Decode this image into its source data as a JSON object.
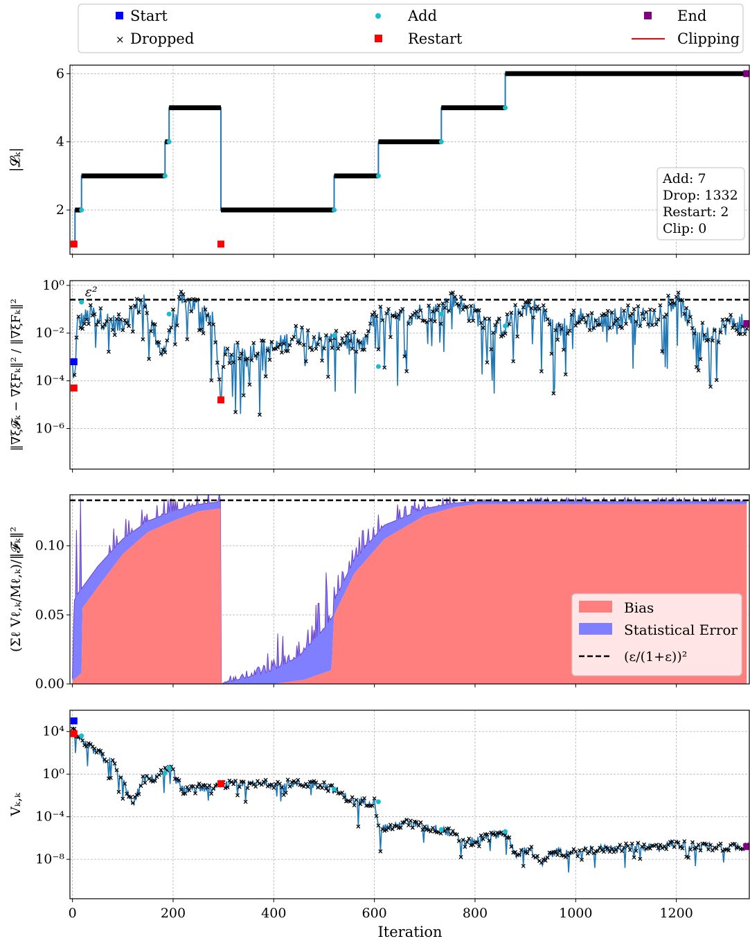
{
  "legend": {
    "items": [
      {
        "label": "Start",
        "marker": "square",
        "color": "#0000ff"
      },
      {
        "label": "Add",
        "marker": "dot",
        "color": "#17becf"
      },
      {
        "label": "End",
        "marker": "square",
        "color": "#800080"
      },
      {
        "label": "Dropped",
        "marker": "x",
        "color": "#000000"
      },
      {
        "label": "Restart",
        "marker": "square",
        "color": "#ff0000"
      },
      {
        "label": "Clipping",
        "marker": "line",
        "color": "#ff0000"
      }
    ]
  },
  "xaxis": {
    "label": "Iteration",
    "range": [
      -5,
      1345
    ],
    "ticks": [
      0,
      200,
      400,
      600,
      800,
      1000,
      1200
    ],
    "tick_labels": [
      "0",
      "200",
      "400",
      "600",
      "800",
      "1000",
      "1200"
    ]
  },
  "colors": {
    "line": "#1f77b4",
    "bias": "#ff7f7f",
    "stat": "#7f7fff",
    "stat_edge": "#7040c0"
  },
  "chart_data": [
    {
      "type": "line",
      "ylabel": "|𝓛ₖ|",
      "ylim": [
        0.7,
        6.25
      ],
      "yticks": [
        2,
        4,
        6
      ],
      "ytick_labels": [
        "2",
        "4",
        "6"
      ],
      "grid": true,
      "series": [
        {
          "x": [
            0,
            5,
            5,
            18,
            18,
            184,
            184,
            192,
            192,
            295,
            295,
            520,
            520,
            608,
            608,
            733,
            733,
            860,
            860,
            1340
          ],
          "y": [
            1,
            1,
            2,
            2,
            3,
            3,
            4,
            4,
            5,
            5,
            2,
            2,
            3,
            3,
            4,
            4,
            5,
            5,
            6,
            6
          ]
        }
      ],
      "dropped_segments": [
        [
          5,
          18,
          2
        ],
        [
          18,
          184,
          3
        ],
        [
          184,
          192,
          4
        ],
        [
          192,
          295,
          5
        ],
        [
          295,
          520,
          2
        ],
        [
          520,
          608,
          3
        ],
        [
          608,
          733,
          4
        ],
        [
          733,
          860,
          5
        ],
        [
          860,
          1340,
          6
        ]
      ],
      "markers": {
        "restart": [
          [
            3,
            1
          ],
          [
            295,
            1
          ]
        ],
        "add": [
          [
            18,
            2
          ],
          [
            184,
            3
          ],
          [
            192,
            4
          ],
          [
            520,
            2
          ],
          [
            608,
            3
          ],
          [
            733,
            4
          ],
          [
            860,
            5
          ]
        ],
        "end": [
          [
            1340,
            6
          ]
        ]
      },
      "stats_box": [
        "Add: 7",
        "Drop: 1332",
        "Restart: 2",
        "Clip: 0"
      ]
    },
    {
      "type": "line",
      "yscale": "log",
      "ylabel": "‖∇ξ𝓕ₖ − ∇ξFₖ‖² / ‖∇ξFₖ‖²",
      "ylim_log10": [
        -7.7,
        0.2
      ],
      "yticks_log10": [
        0,
        -2,
        -4,
        -6
      ],
      "ytick_labels": [
        "10⁰",
        "10⁻²",
        "10⁻⁴",
        "10⁻⁶"
      ],
      "hline_log10": -0.6,
      "hline_label": "ε²",
      "grid": true,
      "anchors_log10": [
        [
          0,
          -3.4
        ],
        [
          3,
          -4.3
        ],
        [
          10,
          -1.6
        ],
        [
          40,
          -1.2
        ],
        [
          90,
          -1.7
        ],
        [
          140,
          -0.7
        ],
        [
          180,
          -2.9
        ],
        [
          200,
          -1.4
        ],
        [
          215,
          -0.7
        ],
        [
          250,
          -0.9
        ],
        [
          280,
          -1.4
        ],
        [
          295,
          -4.8
        ],
        [
          300,
          -3.0
        ],
        [
          350,
          -2.7
        ],
        [
          400,
          -2.7
        ],
        [
          450,
          -2.0
        ],
        [
          500,
          -2.4
        ],
        [
          550,
          -2.3
        ],
        [
          580,
          -2.6
        ],
        [
          600,
          -1.2
        ],
        [
          640,
          -1.5
        ],
        [
          660,
          -1.3
        ],
        [
          700,
          -1.1
        ],
        [
          725,
          -1.1
        ],
        [
          745,
          -0.8
        ],
        [
          760,
          -0.6
        ],
        [
          780,
          -1.0
        ],
        [
          800,
          -1.2
        ],
        [
          840,
          -1.8
        ],
        [
          860,
          -1.7
        ],
        [
          890,
          -1.0
        ],
        [
          910,
          -0.8
        ],
        [
          940,
          -1.3
        ],
        [
          960,
          -2.0
        ],
        [
          1000,
          -1.3
        ],
        [
          1050,
          -1.6
        ],
        [
          1100,
          -1.2
        ],
        [
          1150,
          -1.4
        ],
        [
          1180,
          -0.8
        ],
        [
          1200,
          -0.6
        ],
        [
          1230,
          -1.6
        ],
        [
          1270,
          -2.3
        ],
        [
          1300,
          -1.6
        ],
        [
          1340,
          -1.6
        ]
      ],
      "markers": {
        "start": [
          [
            3,
            -3.2
          ]
        ],
        "restart": [
          [
            3,
            -4.3
          ],
          [
            295,
            -4.8
          ]
        ],
        "add": [
          [
            18,
            -0.7
          ],
          [
            192,
            -1.2
          ],
          [
            520,
            -2.1
          ],
          [
            608,
            -3.4
          ],
          [
            733,
            -1.2
          ],
          [
            860,
            -1.7
          ]
        ],
        "end": [
          [
            1340,
            -1.6
          ]
        ]
      }
    },
    {
      "type": "area",
      "ylabel": "(Σℓ Vℓ,ₖ/Mℓ,ₖ)/‖𝓕ₖ‖²",
      "ylim": [
        0,
        0.137
      ],
      "yticks": [
        0,
        0.05,
        0.1
      ],
      "ytick_labels": [
        "0.00",
        "0.05",
        "0.10"
      ],
      "hline": 0.133,
      "grid": true,
      "legend_entries": [
        "Bias",
        "Statistical Error",
        "(ε/(1+ε))²"
      ],
      "bias_anchors": [
        [
          0,
          0.002
        ],
        [
          18,
          0.008
        ],
        [
          20,
          0.055
        ],
        [
          50,
          0.07
        ],
        [
          100,
          0.094
        ],
        [
          150,
          0.11
        ],
        [
          200,
          0.118
        ],
        [
          250,
          0.125
        ],
        [
          294,
          0.127
        ],
        [
          295,
          0.0
        ],
        [
          400,
          0.0
        ],
        [
          460,
          0.003
        ],
        [
          515,
          0.01
        ],
        [
          520,
          0.05
        ],
        [
          560,
          0.08
        ],
        [
          620,
          0.105
        ],
        [
          700,
          0.122
        ],
        [
          760,
          0.128
        ],
        [
          800,
          0.13
        ],
        [
          1340,
          0.13
        ]
      ],
      "total_anchors": [
        [
          0,
          0.004
        ],
        [
          3,
          0.06
        ],
        [
          10,
          0.065
        ],
        [
          50,
          0.085
        ],
        [
          100,
          0.105
        ],
        [
          150,
          0.118
        ],
        [
          200,
          0.125
        ],
        [
          250,
          0.13
        ],
        [
          294,
          0.132
        ],
        [
          295,
          0.0
        ],
        [
          350,
          0.005
        ],
        [
          400,
          0.01
        ],
        [
          450,
          0.02
        ],
        [
          500,
          0.04
        ],
        [
          519,
          0.05
        ],
        [
          520,
          0.06
        ],
        [
          560,
          0.09
        ],
        [
          620,
          0.115
        ],
        [
          700,
          0.127
        ],
        [
          760,
          0.131
        ],
        [
          800,
          0.132
        ],
        [
          1340,
          0.132
        ]
      ]
    },
    {
      "type": "line",
      "yscale": "log",
      "ylabel": "Vₖ,ₖ",
      "ylim_log10": [
        -11.7,
        6.0
      ],
      "yticks_log10": [
        4,
        0,
        -4,
        -8
      ],
      "ytick_labels": [
        "10⁴",
        "10⁰",
        "10⁻⁴",
        "10⁻⁸"
      ],
      "grid": true,
      "anchors_log10": [
        [
          0,
          3.9
        ],
        [
          5,
          3.9
        ],
        [
          20,
          3.0
        ],
        [
          50,
          2.0
        ],
        [
          80,
          1.0
        ],
        [
          110,
          -1.5
        ],
        [
          120,
          -3.0
        ],
        [
          140,
          -0.5
        ],
        [
          160,
          -0.4
        ],
        [
          180,
          0.2
        ],
        [
          192,
          0.4
        ],
        [
          200,
          0.3
        ],
        [
          220,
          -1.5
        ],
        [
          250,
          -1.2
        ],
        [
          280,
          -1.5
        ],
        [
          295,
          -0.8
        ],
        [
          300,
          -1.0
        ],
        [
          350,
          -1.0
        ],
        [
          400,
          -0.9
        ],
        [
          450,
          -0.9
        ],
        [
          500,
          -1.0
        ],
        [
          520,
          -1.5
        ],
        [
          560,
          -2.6
        ],
        [
          600,
          -2.6
        ],
        [
          610,
          -5.0
        ],
        [
          640,
          -5.0
        ],
        [
          660,
          -4.5
        ],
        [
          700,
          -5.0
        ],
        [
          733,
          -5.2
        ],
        [
          750,
          -5.5
        ],
        [
          780,
          -6.5
        ],
        [
          820,
          -6.0
        ],
        [
          860,
          -5.4
        ],
        [
          880,
          -7.5
        ],
        [
          910,
          -7.0
        ],
        [
          930,
          -8.5
        ],
        [
          960,
          -7.2
        ],
        [
          990,
          -7.5
        ],
        [
          1020,
          -7.1
        ],
        [
          1100,
          -6.9
        ],
        [
          1150,
          -6.8
        ],
        [
          1200,
          -6.6
        ],
        [
          1250,
          -6.8
        ],
        [
          1340,
          -6.8
        ]
      ],
      "markers": {
        "start": [
          [
            3,
            5.0
          ]
        ],
        "restart": [
          [
            3,
            3.8
          ],
          [
            295,
            -0.9
          ]
        ],
        "add": [
          [
            18,
            3.6
          ],
          [
            184,
            0.1
          ],
          [
            192,
            0.6
          ],
          [
            520,
            -1.4
          ],
          [
            608,
            -2.6
          ],
          [
            733,
            -5.2
          ],
          [
            860,
            -5.4
          ]
        ],
        "end": [
          [
            1340,
            -6.8
          ]
        ]
      }
    }
  ]
}
